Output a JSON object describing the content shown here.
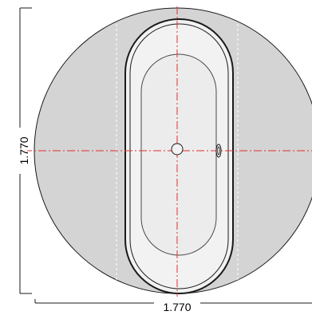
{
  "dimensions": {
    "width_label": "1.770",
    "height_label": "1.770"
  },
  "colors": {
    "platform_fill": "#d4d4d4",
    "tub_fill": "#f2f2f2",
    "outline": "#1a1a1a",
    "centerline": "#e03030",
    "guide_line": "#ffffff"
  }
}
